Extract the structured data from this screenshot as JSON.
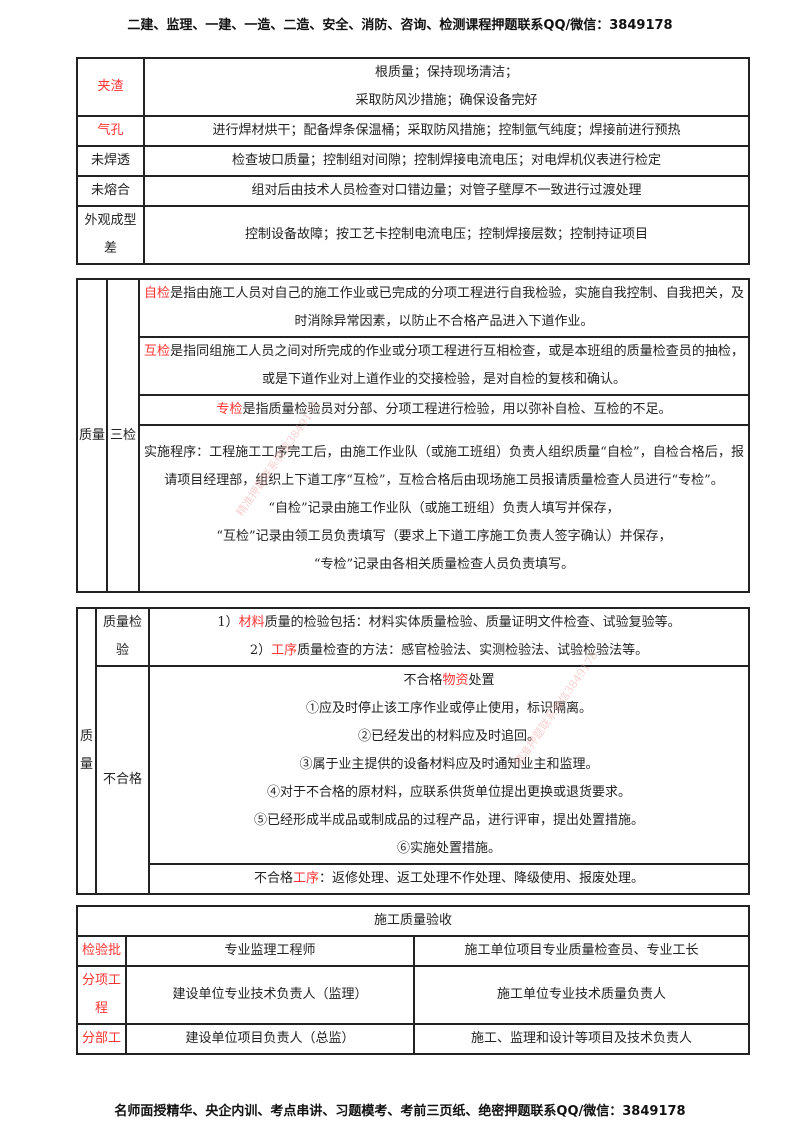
{
  "header": "二建、监理、一建、一造、二造、安全、消防、咨询、检测课程押题联系QQ/微信：3849178",
  "footer": "名师面授精华、央企内训、考点串讲、习题模考、考前三页纸、绝密押题联系QQ/微信：3849178",
  "watermark": "精准押题联系微信3849178",
  "defects": [
    {
      "name": "夹渣",
      "red": true,
      "lines": [
        "根质量；保持现场清洁；",
        "采取防风沙措施；确保设备完好"
      ]
    },
    {
      "name": "气孔",
      "red": true,
      "lines": [
        "进行焊材烘干；配备焊条保温桶；采取防风措施；控制氩气纯度；焊接前进行预热"
      ]
    },
    {
      "name": "未焊透",
      "red": false,
      "lines": [
        "检查坡口质量；控制组对间隙；控制焊接电流电压；对电焊机仪表进行检定"
      ]
    },
    {
      "name": "未熔合",
      "red": false,
      "lines": [
        "组对后由技术人员检查对口错边量；对管子壁厚不一致进行过渡处理"
      ]
    },
    {
      "name": "外观成型差",
      "red": false,
      "lines": [
        "控制设备故障；按工艺卡控制电流电压；控制焊接层数；控制持证项目"
      ]
    }
  ],
  "three_checks": {
    "col1": "质量",
    "col2": "三检",
    "self": {
      "term": "自检",
      "text": "是指由施工人员对自己的施工作业或已完成的分项工程进行自我检验，实施自我控制、自我把关，及时消除异常因素，以防止不合格产品进入下道作业。"
    },
    "mutual": {
      "term": "互检",
      "text": "是指同组施工人员之间对所完成的作业或分项工程进行互相检查，或是本班组的质量检查员的抽检，或是下道作业对上道作业的交接检验，是对自检的复核和确认。"
    },
    "special": {
      "term": "专检",
      "text": "是指质量检验员对分部、分项工程进行检验，用以弥补自检、互检的不足。"
    },
    "procedure": "实施程序：工程施工工序完工后，由施工作业队（或施工班组）负责人组织质量“自检”，自检合格后，报请项目经理部，组织上下道工序“互检”，互检合格后由现场施工员报请质量检查人员进行“专检”。",
    "records": [
      "“自检”记录由施工作业队（或施工班组）负责人填写并保存，",
      "“互检”记录由领工员负责填写（要求上下道工序施工负责人签字确认）并保存，",
      "“专检”记录由各相关质量检查人员负责填写。"
    ]
  },
  "quality": {
    "col1": "质量",
    "inspection_label": "质量检验",
    "inspection": [
      {
        "pre": "1）",
        "term": "材料",
        "text": "质量的检验包括：材料实体质量检验、质量证明文件检查、试验复验等。"
      },
      {
        "pre": "2）",
        "term": "工序",
        "text": "质量检查的方法：感官检验法、实测检验法、试验检验法等。"
      }
    ],
    "nonconform_label": "不合格",
    "material_title": {
      "pre": "不合格",
      "term": "物资",
      "post": "处置"
    },
    "material_items": [
      "①应及时停止该工序作业或停止使用，标识隔离。",
      "②已经发出的材料应及时追回。",
      "③属于业主提供的设备材料应及时通知业主和监理。",
      "④对于不合格的原材料，应联系供货单位提出更换或退货要求。",
      "⑤已经形成半成品或制成品的过程产品，进行评审，提出处置措施。",
      "⑥实施处置措施。"
    ],
    "process": {
      "pre": "不合格",
      "term": "工序",
      "text": "：返修处理、返工处理不作处理、降级使用、报废处理。"
    }
  },
  "acceptance": {
    "title": "施工质量验收",
    "rows": [
      {
        "name": "检验批",
        "a": "专业监理工程师",
        "b": "施工单位项目专业质量检查员、专业工长"
      },
      {
        "name": "分项工程",
        "a": "建设单位专业技术负责人（监理）",
        "b": "施工单位专业技术质量负责人"
      },
      {
        "name": "分部工",
        "a": "建设单位项目负责人（总监）",
        "b": "施工、监理和设计等项目及技术负责人"
      }
    ]
  }
}
